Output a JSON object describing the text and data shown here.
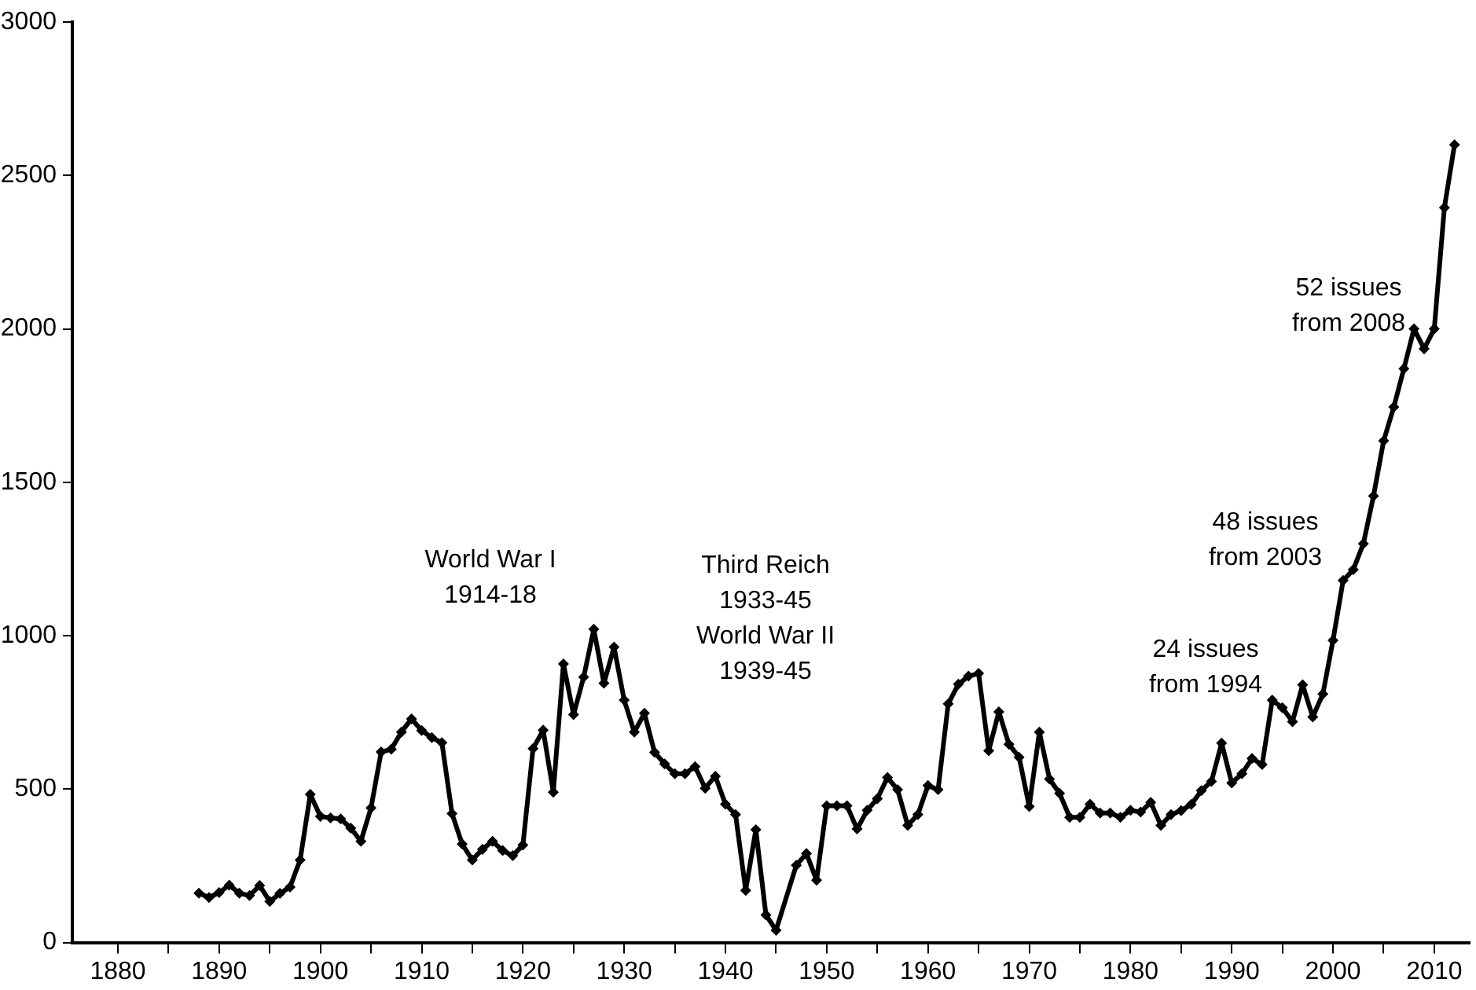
{
  "chart_data": {
    "type": "line",
    "marker": "diamond",
    "line_style": "solid",
    "xlim": [
      1875.5,
      2013.5
    ],
    "xticks": [
      1880,
      {
        "value": 1885,
        "label": null
      },
      1890,
      {
        "value": 1895,
        "label": null
      },
      1900,
      {
        "value": 1905,
        "label": null
      },
      1910,
      {
        "value": 1915,
        "label": null
      },
      1920,
      {
        "value": 1925,
        "label": null
      },
      1930,
      {
        "value": 1935,
        "label": null
      },
      1940,
      {
        "value": 1945,
        "label": null
      },
      1950,
      {
        "value": 1955,
        "label": null
      },
      1960,
      {
        "value": 1965,
        "label": null
      },
      1970,
      {
        "value": 1975,
        "label": null
      },
      1980,
      {
        "value": 1985,
        "label": null
      },
      1990,
      {
        "value": 1995,
        "label": null
      },
      2000,
      {
        "value": 2005,
        "label": null
      },
      2010
    ],
    "ylim": [
      0,
      3000
    ],
    "yticks": [
      0,
      500,
      1000,
      1500,
      2000,
      2500,
      3000
    ],
    "series": [
      {
        "color": "#000000",
        "x": [
          1888,
          1889,
          1890,
          1891,
          1892,
          1893,
          1894,
          1895,
          1896,
          1897,
          1898,
          1899,
          1900,
          1901,
          1902,
          1903,
          1904,
          1905,
          1906,
          1907,
          1908,
          1909,
          1910,
          1911,
          1912,
          1913,
          1914,
          1915,
          1916,
          1917,
          1918,
          1919,
          1920,
          1921,
          1922,
          1923,
          1924,
          1925,
          1926,
          1927,
          1928,
          1929,
          1930,
          1931,
          1932,
          1933,
          1934,
          1935,
          1936,
          1937,
          1938,
          1939,
          1940,
          1941,
          1942,
          1943,
          1944,
          1945,
          1947,
          1948,
          1949,
          1950,
          1951,
          1952,
          1953,
          1954,
          1955,
          1956,
          1957,
          1958,
          1959,
          1960,
          1961,
          1962,
          1963,
          1964,
          1965,
          1966,
          1967,
          1968,
          1969,
          1970,
          1971,
          1972,
          1973,
          1974,
          1975,
          1976,
          1977,
          1978,
          1979,
          1980,
          1981,
          1982,
          1983,
          1984,
          1985,
          1986,
          1987,
          1988,
          1989,
          1990,
          1991,
          1992,
          1993,
          1994,
          1995,
          1996,
          1997,
          1998,
          1999,
          2000,
          2001,
          2002,
          2003,
          2004,
          2005,
          2006,
          2007,
          2008,
          2009,
          2010,
          2011,
          2012
        ],
        "values": [
          161,
          147,
          163,
          187,
          161,
          153,
          186,
          134,
          160,
          181,
          269,
          483,
          411,
          406,
          403,
          373,
          330,
          439,
          621,
          630,
          686,
          729,
          691,
          668,
          651,
          420,
          321,
          269,
          304,
          330,
          300,
          283,
          318,
          632,
          692,
          490,
          908,
          743,
          865,
          1021,
          845,
          963,
          790,
          686,
          747,
          620,
          582,
          550,
          550,
          573,
          503,
          542,
          451,
          417,
          170,
          368,
          90,
          40,
          252,
          290,
          203,
          446,
          446,
          446,
          370,
          431,
          469,
          538,
          498,
          382,
          417,
          512,
          498,
          778,
          842,
          868,
          877,
          625,
          752,
          646,
          604,
          443,
          686,
          533,
          486,
          408,
          408,
          451,
          422,
          422,
          408,
          431,
          425,
          457,
          382,
          417,
          430,
          450,
          495,
          525,
          650,
          520,
          550,
          600,
          580,
          790,
          765,
          720,
          840,
          735,
          810,
          985,
          1180,
          1215,
          1300,
          1455,
          1635,
          1745,
          1870,
          2000,
          1935,
          2000,
          2395,
          2600
        ]
      }
    ],
    "annotations": [
      "World War I\n1914-18",
      "Third Reich\n1933-45\nWorld War II\n1939-45",
      "24 issues\nfrom 1994",
      "48 issues\nfrom 2003",
      "52 issues\nfrom 2008"
    ]
  }
}
